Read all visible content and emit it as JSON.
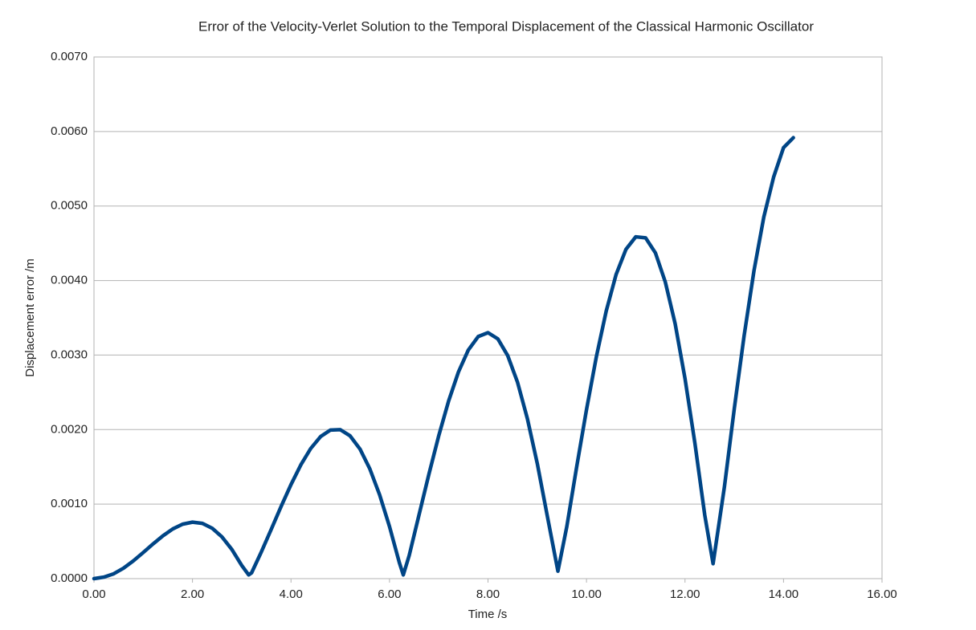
{
  "chart_data": {
    "type": "line",
    "title": "Error of the Velocity-Verlet Solution to the Temporal Displacement of the Classical Harmonic Oscillator",
    "x_label": "Time /s",
    "y_label": "Displacement error /m",
    "xlim": [
      0,
      16
    ],
    "ylim": [
      0,
      0.007
    ],
    "xticks": [
      {
        "value": 0,
        "label": "0.00"
      },
      {
        "value": 2,
        "label": "2.00"
      },
      {
        "value": 4,
        "label": "4.00"
      },
      {
        "value": 6,
        "label": "6.00"
      },
      {
        "value": 8,
        "label": "8.00"
      },
      {
        "value": 10,
        "label": "10.00"
      },
      {
        "value": 12,
        "label": "12.00"
      },
      {
        "value": 14,
        "label": "14.00"
      },
      {
        "value": 16,
        "label": "16.00"
      }
    ],
    "yticks": [
      {
        "value": 0,
        "label": "0.0000"
      },
      {
        "value": 0.001,
        "label": "0.0010"
      },
      {
        "value": 0.002,
        "label": "0.0020"
      },
      {
        "value": 0.003,
        "label": "0.0030"
      },
      {
        "value": 0.004,
        "label": "0.0040"
      },
      {
        "value": 0.005,
        "label": "0.0050"
      },
      {
        "value": 0.006,
        "label": "0.0060"
      },
      {
        "value": 0.007,
        "label": "0.0070"
      }
    ],
    "grid": true,
    "x": [
      0,
      0.2,
      0.4,
      0.6,
      0.8,
      1.0,
      1.2,
      1.4,
      1.6,
      1.8,
      2.0,
      2.2,
      2.4,
      2.6,
      2.8,
      3.0,
      3.14,
      3.2,
      3.4,
      3.6,
      3.8,
      4.0,
      4.2,
      4.4,
      4.6,
      4.8,
      5.0,
      5.2,
      5.4,
      5.6,
      5.8,
      6.0,
      6.2,
      6.28,
      6.4,
      6.6,
      6.8,
      7.0,
      7.2,
      7.4,
      7.6,
      7.8,
      8.0,
      8.2,
      8.4,
      8.6,
      8.8,
      9.0,
      9.2,
      9.42,
      9.6,
      9.8,
      10.0,
      10.2,
      10.4,
      10.6,
      10.8,
      11.0,
      11.2,
      11.4,
      11.6,
      11.8,
      12.0,
      12.2,
      12.4,
      12.57,
      12.8,
      13.0,
      13.2,
      13.4,
      13.6,
      13.8,
      14.0,
      14.2
    ],
    "series": [
      {
        "name": "Displacement error",
        "color": "#004586",
        "values": [
          0,
          2e-05,
          6.5e-05,
          0.000141,
          0.000239,
          0.000351,
          0.000466,
          0.000575,
          0.000667,
          0.000731,
          0.000758,
          0.000742,
          0.000676,
          0.000559,
          0.000391,
          0.000177,
          5e-05,
          7.8e-05,
          0.000362,
          0.000664,
          0.00097,
          0.001262,
          0.001527,
          0.001746,
          0.001906,
          0.001994,
          0.001999,
          0.001916,
          0.00174,
          0.001474,
          0.001124,
          0.000699,
          0.000215,
          5e-05,
          0.000311,
          0.000857,
          0.001401,
          0.001918,
          0.002383,
          0.002773,
          0.003067,
          0.003248,
          0.003301,
          0.003217,
          0.002993,
          0.002634,
          0.002146,
          0.001547,
          0.000855,
          0.0001,
          0.000698,
          0.001498,
          0.002268,
          0.002977,
          0.00359,
          0.004079,
          0.004418,
          0.004587,
          0.004573,
          0.00437,
          0.00398,
          0.00342,
          0.002685,
          0.001822,
          0.000858,
          0.0002,
          0.001231,
          0.002278,
          0.003259,
          0.00413,
          0.004852,
          0.00539,
          0.005783,
          0.005917
        ]
      }
    ]
  }
}
